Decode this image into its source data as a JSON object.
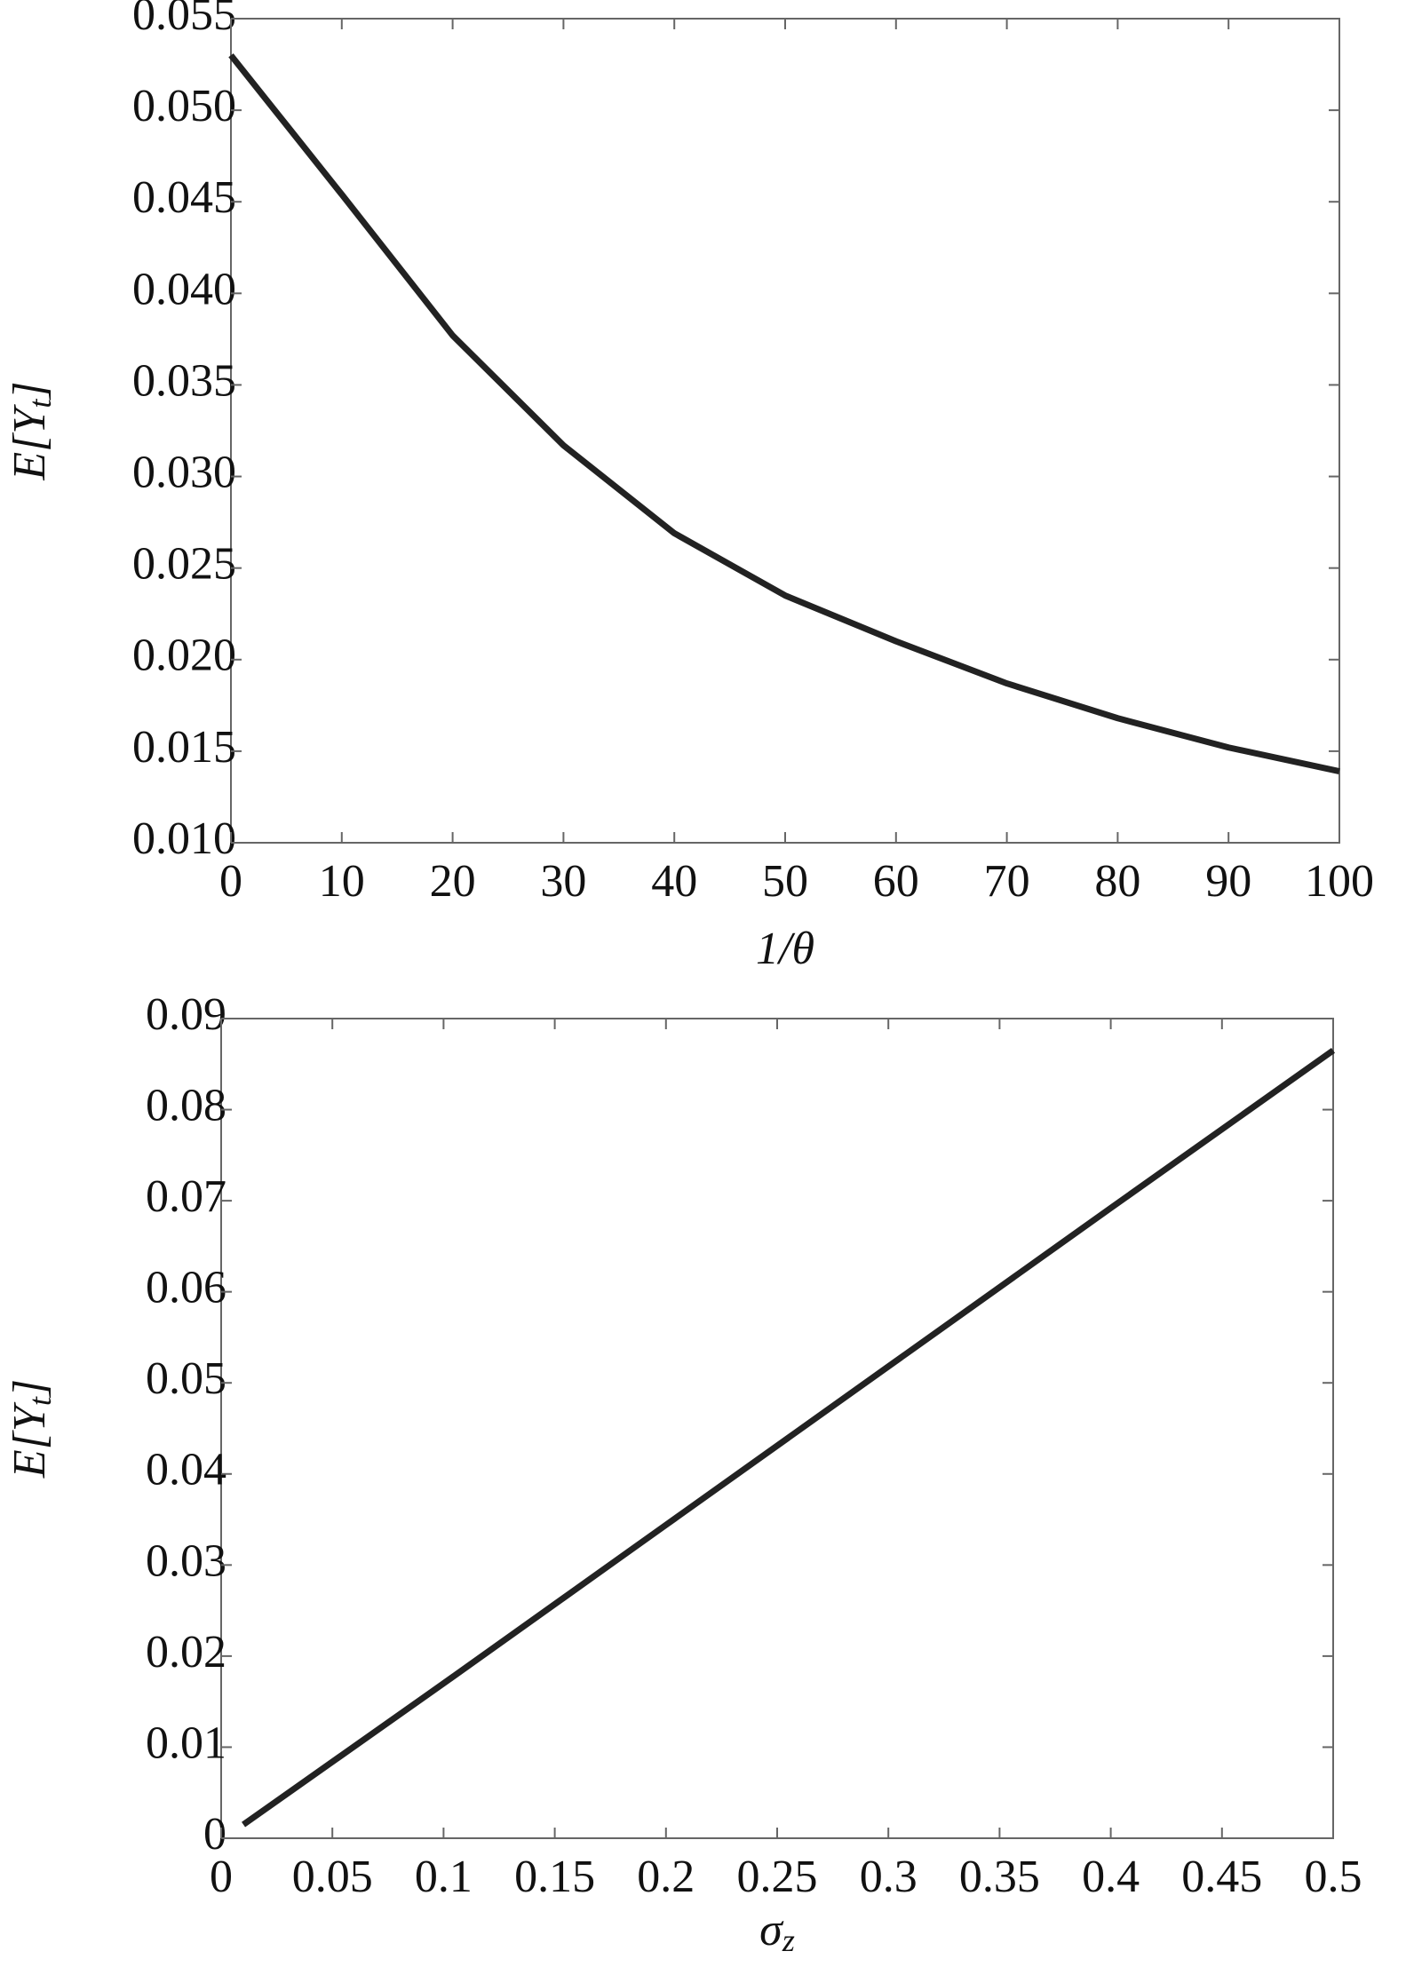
{
  "chart_data": [
    {
      "type": "line",
      "xlabel": {
        "text": "1/θ"
      },
      "ylabel": {
        "text": "E[Y",
        "subscript": "t",
        "suffix": "]"
      },
      "x": [
        0,
        5,
        10,
        20,
        30,
        40,
        50,
        60,
        70,
        80,
        90,
        100
      ],
      "series": [
        {
          "color": "#222222",
          "values": [
            0.053,
            0.0492,
            0.0454,
            0.0377,
            0.0317,
            0.0269,
            0.0235,
            0.021,
            0.0187,
            0.0168,
            0.0152,
            0.0139
          ]
        }
      ],
      "xlim": [
        0,
        100
      ],
      "xticks": [
        0,
        10,
        20,
        30,
        40,
        50,
        60,
        70,
        80,
        90,
        100
      ],
      "ylim": [
        0.01,
        0.055
      ],
      "yticks": [
        {
          "value": 0.01,
          "label": "0.010"
        },
        0.015,
        {
          "value": 0.02,
          "label": "0.020"
        },
        0.025,
        {
          "value": 0.03,
          "label": "0.030"
        },
        0.035,
        {
          "value": 0.04,
          "label": "0.040"
        },
        0.045,
        {
          "value": 0.05,
          "label": "0.050"
        },
        0.055
      ],
      "grid": false
    },
    {
      "type": "line",
      "xlabel": {
        "text": "σ",
        "subscript": "z"
      },
      "ylabel": {
        "text": "E[Y",
        "subscript": "t",
        "suffix": "]"
      },
      "x": [
        0.01,
        0.1,
        0.2,
        0.3,
        0.4,
        0.5
      ],
      "series": [
        {
          "color": "#222222",
          "values": [
            0.0015,
            0.017,
            0.0344,
            0.0518,
            0.0692,
            0.0865
          ]
        }
      ],
      "xlim": [
        0,
        0.5
      ],
      "xticks": [
        0,
        0.05,
        0.1,
        0.15,
        0.2,
        0.25,
        0.3,
        0.35,
        0.4,
        0.45,
        0.5
      ],
      "ylim": [
        0,
        0.09
      ],
      "yticks": [
        0,
        0.01,
        0.02,
        0.03,
        0.04,
        0.05,
        0.06,
        0.07,
        0.08,
        0.09
      ],
      "grid": false
    }
  ]
}
